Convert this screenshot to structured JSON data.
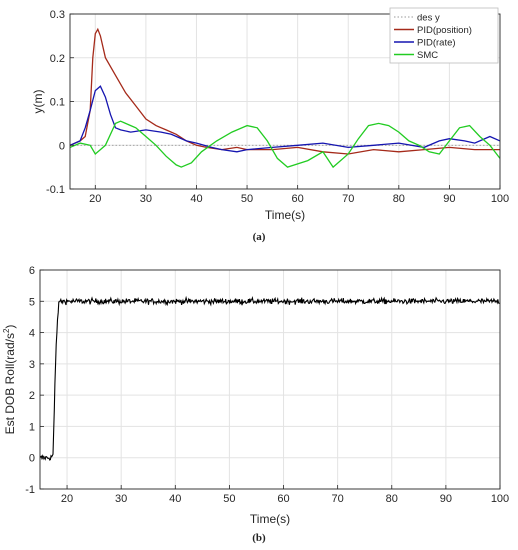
{
  "chart_data": [
    {
      "type": "line",
      "caption": "(a)",
      "xlabel": "Time(s)",
      "ylabel": "y(m)",
      "xlim": [
        15,
        100
      ],
      "ylim": [
        -0.1,
        0.3
      ],
      "xticks": [
        20,
        30,
        40,
        50,
        60,
        70,
        80,
        90,
        100
      ],
      "yticks": [
        -0.1,
        0,
        0.1,
        0.2,
        0.3
      ],
      "grid": true,
      "legend_position": "top-right",
      "series": [
        {
          "name": "des y",
          "color": "#9a9a9a",
          "style": "dotted",
          "x": [
            15,
            100
          ],
          "y": [
            0,
            0
          ]
        },
        {
          "name": "PID(position)",
          "color": "#a52a1a",
          "style": "solid",
          "x": [
            15,
            17,
            18,
            19,
            19.5,
            20,
            20.5,
            21,
            22,
            24,
            26,
            28,
            30,
            32,
            34,
            36,
            38,
            40,
            42,
            45,
            48,
            50,
            55,
            60,
            65,
            70,
            75,
            80,
            85,
            90,
            95,
            100
          ],
          "y": [
            0.0,
            0.01,
            0.02,
            0.08,
            0.2,
            0.255,
            0.265,
            0.25,
            0.2,
            0.16,
            0.12,
            0.09,
            0.06,
            0.045,
            0.035,
            0.025,
            0.01,
            0.0,
            -0.005,
            -0.01,
            -0.005,
            -0.01,
            -0.01,
            -0.005,
            -0.015,
            -0.02,
            -0.01,
            -0.015,
            -0.01,
            -0.005,
            -0.01,
            -0.01
          ]
        },
        {
          "name": "PID(rate)",
          "color": "#1515b0",
          "style": "solid",
          "x": [
            15,
            17,
            18,
            19,
            20,
            21,
            22,
            23,
            24,
            25,
            27,
            30,
            33,
            35,
            38,
            40,
            43,
            45,
            48,
            50,
            55,
            60,
            65,
            70,
            75,
            80,
            85,
            88,
            90,
            93,
            95,
            98,
            100
          ],
          "y": [
            0.0,
            0.01,
            0.04,
            0.08,
            0.125,
            0.135,
            0.11,
            0.07,
            0.04,
            0.035,
            0.03,
            0.035,
            0.03,
            0.025,
            0.01,
            0.005,
            -0.005,
            -0.01,
            -0.015,
            -0.01,
            -0.005,
            0.0,
            0.005,
            -0.005,
            0.0,
            0.005,
            -0.005,
            0.01,
            0.015,
            0.01,
            0.005,
            0.02,
            0.01
          ]
        },
        {
          "name": "SMC",
          "color": "#22cc22",
          "style": "solid",
          "x": [
            15,
            17,
            19,
            20,
            21,
            22,
            24,
            25,
            26,
            28,
            30,
            32,
            34,
            36,
            37,
            39,
            41,
            44,
            47,
            50,
            52,
            54,
            56,
            58,
            62,
            65,
            67,
            70,
            72,
            74,
            76,
            78,
            80,
            82,
            84,
            86,
            88,
            90,
            92,
            94,
            96,
            98,
            100
          ],
          "y": [
            -0.005,
            0.005,
            0.0,
            -0.02,
            -0.01,
            0.0,
            0.05,
            0.055,
            0.05,
            0.04,
            0.02,
            0.0,
            -0.025,
            -0.045,
            -0.05,
            -0.04,
            -0.015,
            0.01,
            0.03,
            0.045,
            0.04,
            0.01,
            -0.03,
            -0.05,
            -0.035,
            -0.015,
            -0.05,
            -0.02,
            0.015,
            0.045,
            0.05,
            0.045,
            0.03,
            0.01,
            0.0,
            -0.015,
            -0.02,
            0.01,
            0.04,
            0.045,
            0.02,
            0.0,
            -0.03
          ]
        }
      ]
    },
    {
      "type": "line",
      "caption": "(b)",
      "xlabel": "Time(s)",
      "ylabel": "Est DOB Roll(rad/s",
      "ylabel_superscript": "2",
      "ylabel_suffix": ")",
      "xlim": [
        15,
        100
      ],
      "ylim": [
        -1,
        6
      ],
      "xticks": [
        20,
        30,
        40,
        50,
        60,
        70,
        80,
        90,
        100
      ],
      "yticks": [
        -1,
        0,
        1,
        2,
        3,
        4,
        5,
        6
      ],
      "grid": true,
      "series": [
        {
          "name": "",
          "color": "#000000",
          "style": "solid",
          "noise": 0.09,
          "x": [
            15,
            16,
            17,
            17.4,
            17.6,
            17.8,
            18.0,
            18.2,
            18.4,
            18.6,
            19,
            20,
            100
          ],
          "y": [
            0.0,
            0.0,
            0.0,
            0.1,
            1.2,
            2.6,
            3.6,
            4.3,
            4.8,
            5.0,
            5.0,
            5.0,
            5.0
          ]
        }
      ]
    }
  ]
}
